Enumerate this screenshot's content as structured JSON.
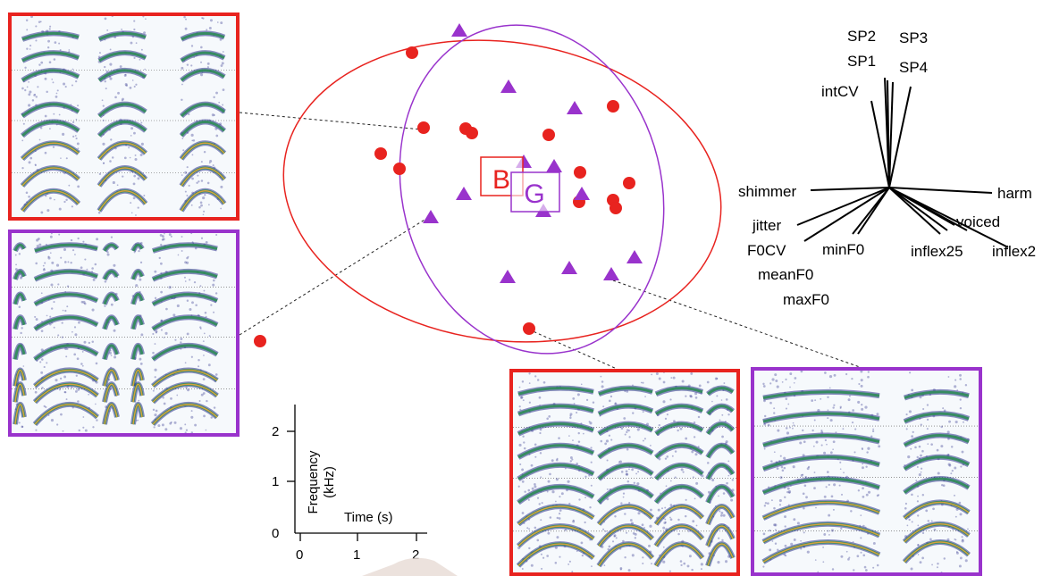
{
  "colors": {
    "group_b": "#e8231f",
    "group_g": "#9933cc",
    "contour_dark": "#2a2f8a",
    "contour_mid": "#2e8b57",
    "contour_hot": "#e8a33a"
  },
  "scatter": {
    "group_labels": {
      "b": "B",
      "g": "G"
    },
    "b_marker": "circle",
    "g_marker": "triangle"
  },
  "biplot": {
    "loadings": [
      "SP2",
      "SP3",
      "SP1",
      "SP4",
      "intCV",
      "shimmer",
      "harm",
      "jitter",
      "voiced",
      "F0CV",
      "minF0",
      "inflex25",
      "inflex2",
      "meanF0",
      "maxF0"
    ]
  },
  "axis_inset": {
    "y_label_line1": "Frequency",
    "y_label_line2": "(kHz)",
    "x_label": "Time (s)",
    "y_ticks": [
      "2",
      "1",
      "0"
    ],
    "x_ticks": [
      "0",
      "1",
      "2"
    ]
  },
  "spectrogram_panels": [
    "top-left",
    "mid-left",
    "bottom-right-a",
    "bottom-right-b"
  ]
}
